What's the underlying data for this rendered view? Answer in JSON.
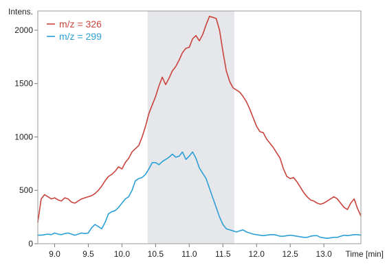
{
  "chart_data": {
    "type": "line",
    "title": "",
    "xlabel": "Time [min]",
    "ylabel": "Intens.",
    "xlim": [
      8.75,
      13.55
    ],
    "ylim": [
      0,
      2180
    ],
    "xticks": [
      9.0,
      9.5,
      10.0,
      10.5,
      11.0,
      11.5,
      12.0,
      12.5,
      13.0
    ],
    "xtick_labels": [
      "9.0",
      "9.5",
      "10.0",
      "10.5",
      "11.0",
      "11.5",
      "12.0",
      "12.5",
      "13.0"
    ],
    "yticks": [
      0,
      500,
      1000,
      1500,
      2000
    ],
    "ytick_labels": [
      "0",
      "500",
      "1000",
      "1500",
      "2000"
    ],
    "grid": false,
    "legend_position": "top-left",
    "highlight_region": {
      "x_start": 10.38,
      "x_end": 11.67,
      "color": "#e6e7ea"
    },
    "series": [
      {
        "name": "m/z = 326",
        "color": "#c9423a",
        "x": [
          8.75,
          8.8,
          8.85,
          8.9,
          8.95,
          9.0,
          9.05,
          9.1,
          9.15,
          9.2,
          9.25,
          9.3,
          9.35,
          9.4,
          9.45,
          9.5,
          9.55,
          9.6,
          9.65,
          9.7,
          9.75,
          9.8,
          9.85,
          9.9,
          9.95,
          10.0,
          10.05,
          10.1,
          10.15,
          10.2,
          10.25,
          10.3,
          10.35,
          10.4,
          10.45,
          10.5,
          10.55,
          10.6,
          10.65,
          10.7,
          10.75,
          10.8,
          10.85,
          10.9,
          10.95,
          11.0,
          11.05,
          11.1,
          11.15,
          11.2,
          11.25,
          11.3,
          11.35,
          11.4,
          11.45,
          11.5,
          11.55,
          11.6,
          11.65,
          11.7,
          11.75,
          11.8,
          11.85,
          11.9,
          11.95,
          12.0,
          12.05,
          12.1,
          12.15,
          12.2,
          12.25,
          12.3,
          12.35,
          12.4,
          12.45,
          12.5,
          12.55,
          12.6,
          12.65,
          12.7,
          12.75,
          12.8,
          12.85,
          12.9,
          12.95,
          13.0,
          13.05,
          13.1,
          13.15,
          13.2,
          13.25,
          13.3,
          13.35,
          13.4,
          13.45,
          13.5,
          13.55
        ],
        "y": [
          200,
          420,
          460,
          440,
          420,
          430,
          410,
          400,
          430,
          420,
          390,
          380,
          400,
          420,
          430,
          440,
          450,
          470,
          500,
          540,
          590,
          630,
          650,
          680,
          720,
          700,
          760,
          800,
          860,
          890,
          920,
          1000,
          1100,
          1220,
          1300,
          1380,
          1480,
          1560,
          1490,
          1550,
          1620,
          1660,
          1720,
          1790,
          1830,
          1840,
          1920,
          1950,
          1900,
          1960,
          2050,
          2130,
          2120,
          2110,
          2000,
          1800,
          1620,
          1520,
          1460,
          1440,
          1420,
          1380,
          1330,
          1260,
          1180,
          1100,
          1050,
          1040,
          980,
          940,
          900,
          850,
          800,
          700,
          630,
          610,
          620,
          580,
          530,
          480,
          440,
          410,
          400,
          380,
          370,
          380,
          400,
          420,
          440,
          420,
          380,
          340,
          320,
          380,
          420,
          330,
          260
        ]
      },
      {
        "name": "m/z = 299",
        "color": "#2a9fd6",
        "x": [
          8.75,
          8.8,
          8.85,
          8.9,
          8.95,
          9.0,
          9.05,
          9.1,
          9.15,
          9.2,
          9.25,
          9.3,
          9.35,
          9.4,
          9.45,
          9.5,
          9.55,
          9.6,
          9.65,
          9.7,
          9.75,
          9.8,
          9.85,
          9.9,
          9.95,
          10.0,
          10.05,
          10.1,
          10.15,
          10.2,
          10.25,
          10.3,
          10.35,
          10.4,
          10.45,
          10.5,
          10.55,
          10.6,
          10.65,
          10.7,
          10.75,
          10.8,
          10.85,
          10.9,
          10.95,
          11.0,
          11.05,
          11.1,
          11.15,
          11.2,
          11.25,
          11.3,
          11.35,
          11.4,
          11.45,
          11.5,
          11.55,
          11.6,
          11.65,
          11.7,
          11.75,
          11.8,
          11.85,
          11.9,
          11.95,
          12.0,
          12.05,
          12.1,
          12.15,
          12.2,
          12.25,
          12.3,
          12.35,
          12.4,
          12.45,
          12.5,
          12.55,
          12.6,
          12.65,
          12.7,
          12.75,
          12.8,
          12.85,
          12.9,
          12.95,
          13.0,
          13.05,
          13.1,
          13.15,
          13.2,
          13.25,
          13.3,
          13.35,
          13.4,
          13.45,
          13.5,
          13.55
        ],
        "y": [
          80,
          80,
          85,
          90,
          85,
          100,
          90,
          85,
          95,
          100,
          90,
          80,
          90,
          100,
          95,
          100,
          150,
          180,
          160,
          140,
          200,
          280,
          300,
          310,
          340,
          380,
          420,
          440,
          500,
          590,
          610,
          620,
          650,
          700,
          760,
          760,
          740,
          770,
          790,
          810,
          840,
          810,
          820,
          860,
          790,
          820,
          860,
          800,
          710,
          660,
          610,
          520,
          430,
          340,
          250,
          180,
          140,
          130,
          120,
          110,
          120,
          130,
          110,
          100,
          90,
          85,
          80,
          75,
          80,
          85,
          85,
          80,
          70,
          70,
          75,
          80,
          75,
          70,
          65,
          60,
          60,
          70,
          75,
          75,
          60,
          55,
          50,
          55,
          60,
          60,
          70,
          80,
          75,
          80,
          85,
          85,
          80
        ]
      }
    ]
  }
}
